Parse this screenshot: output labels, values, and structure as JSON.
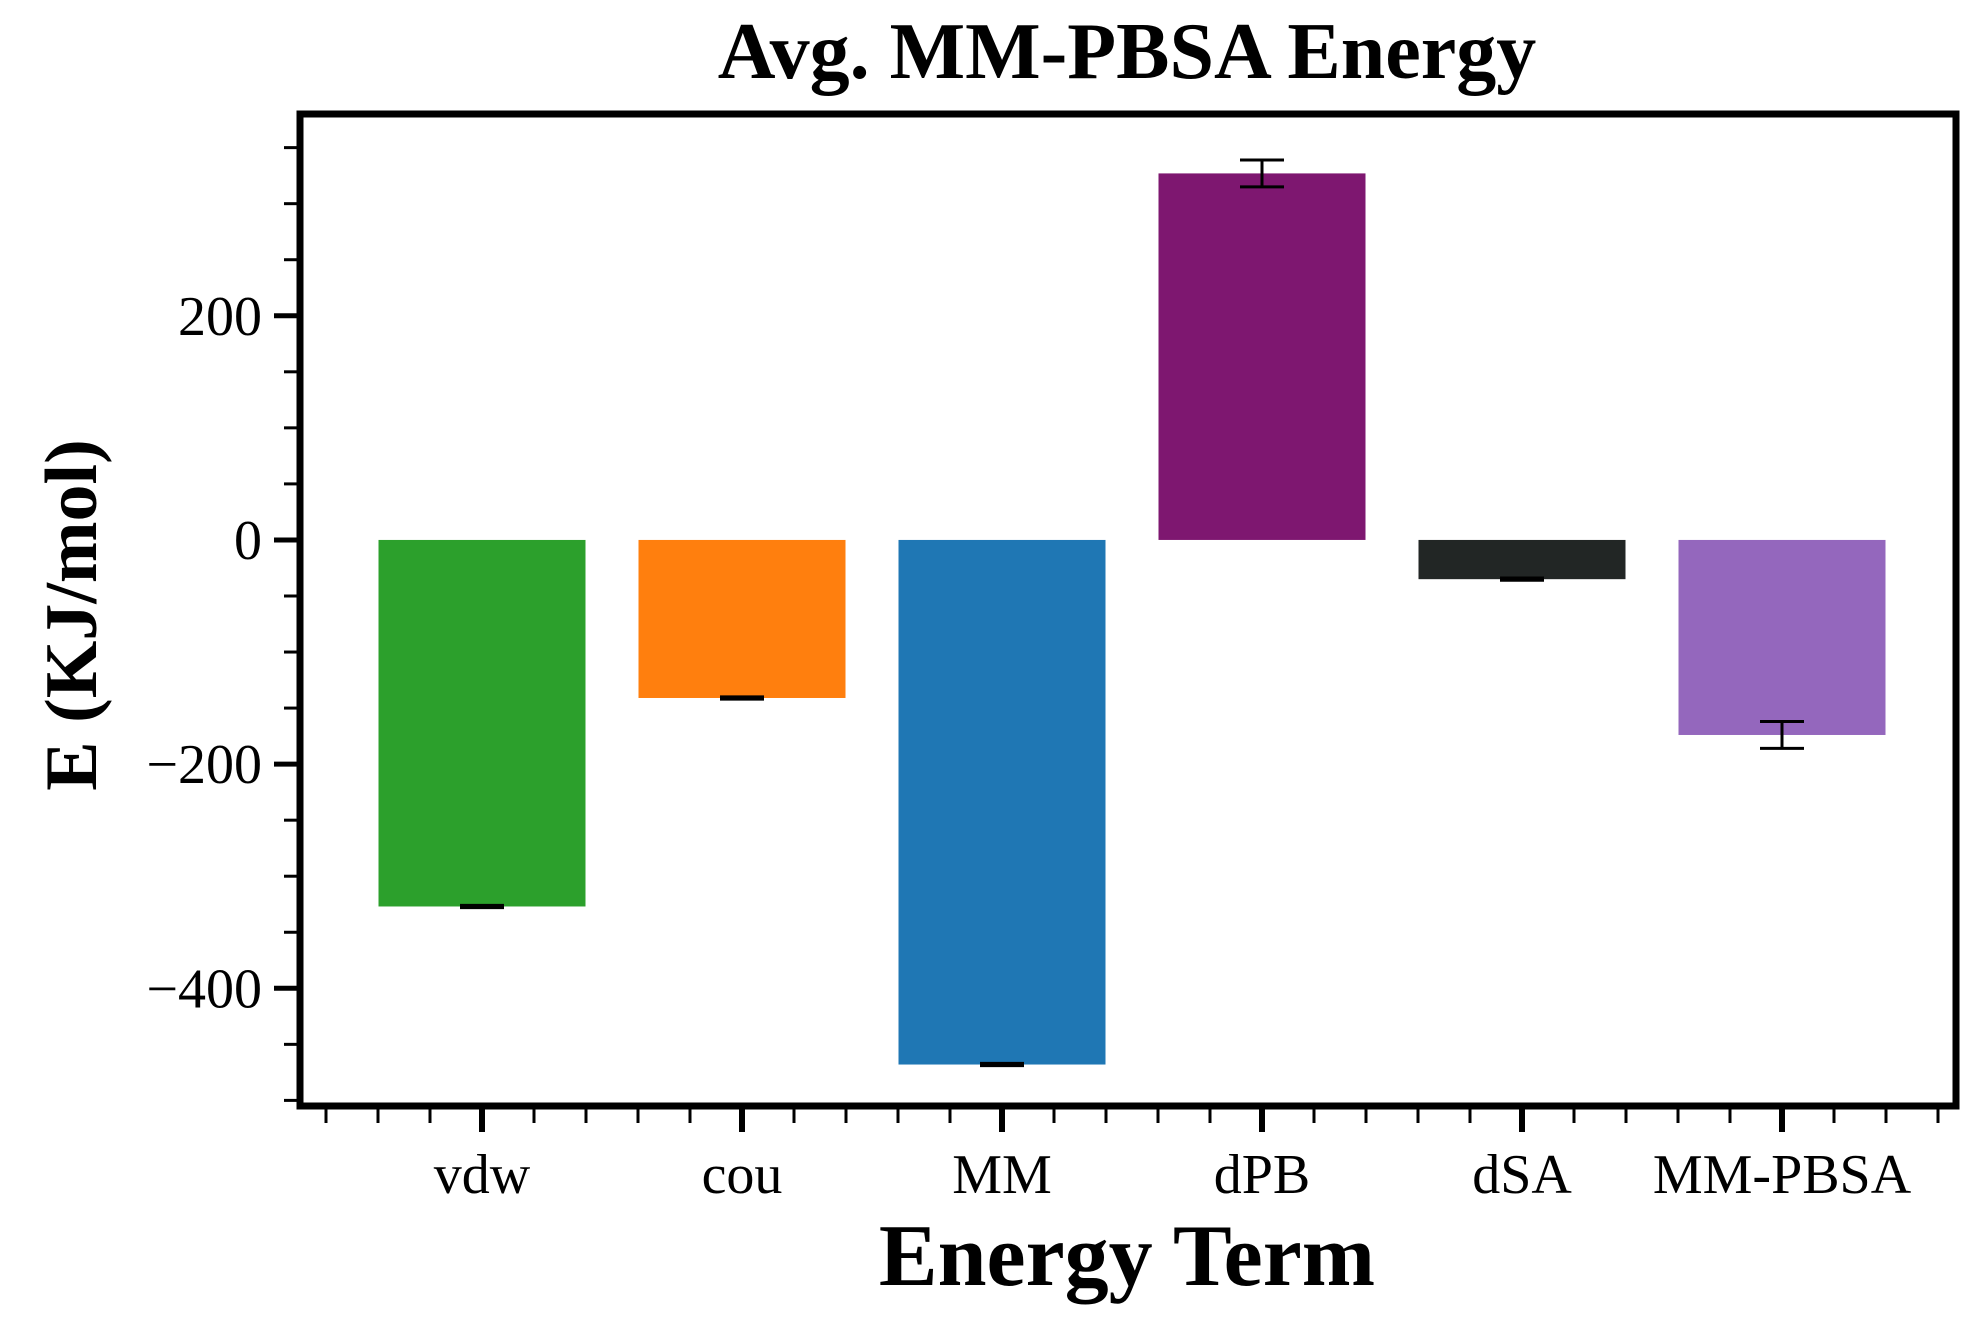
{
  "chart_data": {
    "type": "bar",
    "title": "Avg. MM-PBSA Energy",
    "xlabel": "Energy Term",
    "ylabel": "E (KJ/mol)",
    "categories": [
      "vdw",
      "cou",
      "MM",
      "dPB",
      "dSA",
      "MM-PBSA"
    ],
    "values": [
      -327,
      -141,
      -468,
      327,
      -35,
      -174
    ],
    "errors": [
      1,
      1,
      1,
      12,
      1,
      12
    ],
    "colors": [
      "#2ca02c",
      "#ff7f0e",
      "#1f77b4",
      "#7e1770",
      "#222625",
      "#9467bd"
    ],
    "yticks": [
      -400,
      -200,
      0,
      200
    ],
    "ytick_labels": [
      "−400",
      "−200",
      "0",
      "200"
    ],
    "ylim": [
      -505,
      380
    ],
    "grid": false,
    "legend": "none"
  }
}
